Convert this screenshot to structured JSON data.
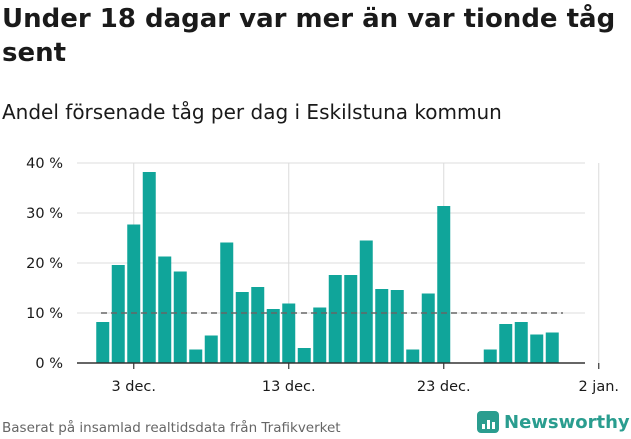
{
  "header": {
    "title": "Under 18 dagar var mer än var tionde tåg sent",
    "subtitle": "Andel försenade tåg per dag i Eskilstuna kommun"
  },
  "footer": {
    "source": "Baserat på insamlad realtidsdata från Trafikverket",
    "brand": "Newsworthy"
  },
  "colors": {
    "bar": "#10a59a",
    "grid": "#dcdcdc",
    "reference_line": "#666666"
  },
  "chart_data": {
    "type": "bar",
    "x_start": "2021-12-01",
    "x_end": "2022-01-02",
    "categories": [
      "2021-12-01",
      "2021-12-02",
      "2021-12-03",
      "2021-12-04",
      "2021-12-05",
      "2021-12-06",
      "2021-12-07",
      "2021-12-08",
      "2021-12-09",
      "2021-12-10",
      "2021-12-11",
      "2021-12-12",
      "2021-12-13",
      "2021-12-14",
      "2021-12-15",
      "2021-12-16",
      "2021-12-17",
      "2021-12-18",
      "2021-12-19",
      "2021-12-20",
      "2021-12-21",
      "2021-12-22",
      "2021-12-23",
      "2021-12-24",
      "2021-12-25",
      "2021-12-26",
      "2021-12-27",
      "2021-12-28",
      "2021-12-29",
      "2021-12-30"
    ],
    "values": [
      8.2,
      19.6,
      27.7,
      38.2,
      21.3,
      18.3,
      2.7,
      5.5,
      24.1,
      14.2,
      15.2,
      10.8,
      11.9,
      3.0,
      11.1,
      17.6,
      17.6,
      24.5,
      14.8,
      14.6,
      2.7,
      13.9,
      31.4,
      null,
      null,
      2.7,
      7.8,
      8.2,
      5.7,
      6.1
    ],
    "reference_line": 10,
    "ylim": [
      0,
      40
    ],
    "yticks": [
      0,
      10,
      20,
      30,
      40
    ],
    "ytick_labels": [
      "0 %",
      "10 %",
      "20 %",
      "30 %",
      "40 %"
    ],
    "xticks": [
      "2021-12-03",
      "2021-12-13",
      "2021-12-23",
      "2022-01-02"
    ],
    "xtick_labels": [
      "3 dec.",
      "13 dec.",
      "23 dec.",
      "2 jan."
    ],
    "grid": true,
    "legend": "none"
  }
}
